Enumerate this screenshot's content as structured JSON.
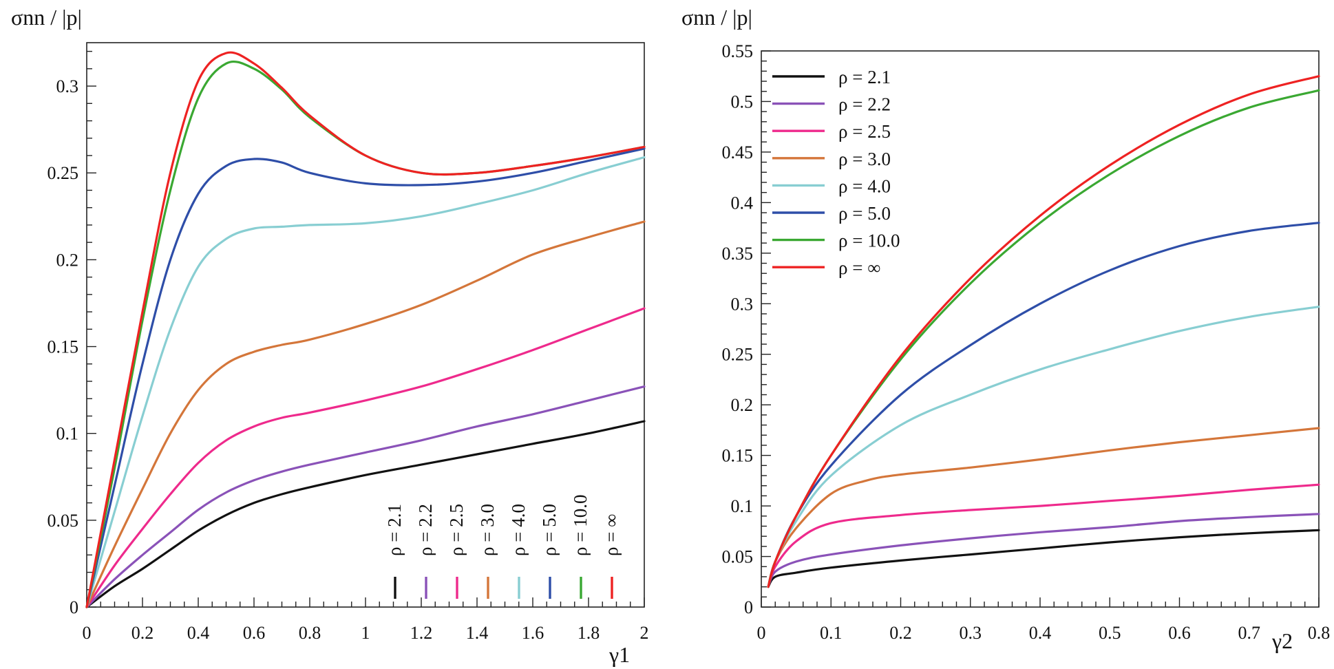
{
  "chart_data": [
    {
      "type": "line",
      "ylabel": "σnn / |p|",
      "xlabel": "γ1",
      "xlim": [
        0,
        2
      ],
      "ylim": [
        0,
        0.325
      ],
      "xticks": [
        "0",
        "0.2",
        "0.4",
        "0.6",
        "0.8",
        "1",
        "1.2",
        "1.4",
        "1.6",
        "1.8",
        "2"
      ],
      "yticks": [
        "0",
        "0.05",
        "0.1",
        "0.15",
        "0.2",
        "0.25",
        "0.3"
      ],
      "legend_placement": "bottom-right, vertical",
      "series": [
        {
          "name": "ρ = 2.1",
          "color": "#111111",
          "x": [
            0,
            0.1,
            0.2,
            0.3,
            0.4,
            0.5,
            0.6,
            0.7,
            0.8,
            1.0,
            1.2,
            1.4,
            1.6,
            1.8,
            2.0
          ],
          "y": [
            0,
            0.012,
            0.022,
            0.033,
            0.044,
            0.053,
            0.06,
            0.065,
            0.069,
            0.076,
            0.082,
            0.088,
            0.094,
            0.1,
            0.107
          ]
        },
        {
          "name": "ρ = 2.2",
          "color": "#8a52b8",
          "x": [
            0,
            0.1,
            0.2,
            0.3,
            0.4,
            0.5,
            0.6,
            0.7,
            0.8,
            1.0,
            1.2,
            1.4,
            1.6,
            1.8,
            2.0
          ],
          "y": [
            0,
            0.016,
            0.03,
            0.043,
            0.056,
            0.066,
            0.073,
            0.078,
            0.082,
            0.089,
            0.096,
            0.104,
            0.111,
            0.119,
            0.127
          ]
        },
        {
          "name": "ρ = 2.5",
          "color": "#ee2a8c",
          "x": [
            0,
            0.1,
            0.2,
            0.3,
            0.4,
            0.5,
            0.6,
            0.7,
            0.8,
            1.0,
            1.2,
            1.4,
            1.6,
            1.8,
            2.0
          ],
          "y": [
            0,
            0.024,
            0.045,
            0.065,
            0.083,
            0.096,
            0.104,
            0.109,
            0.112,
            0.119,
            0.127,
            0.137,
            0.148,
            0.16,
            0.172
          ]
        },
        {
          "name": "ρ = 3.0",
          "color": "#d4763a",
          "x": [
            0,
            0.1,
            0.2,
            0.3,
            0.4,
            0.5,
            0.6,
            0.7,
            0.8,
            1.0,
            1.2,
            1.4,
            1.6,
            1.8,
            2.0
          ],
          "y": [
            0,
            0.035,
            0.068,
            0.1,
            0.125,
            0.14,
            0.147,
            0.151,
            0.154,
            0.163,
            0.174,
            0.188,
            0.203,
            0.213,
            0.222
          ]
        },
        {
          "name": "ρ = 4.0",
          "color": "#88ced2",
          "x": [
            0,
            0.1,
            0.2,
            0.3,
            0.4,
            0.5,
            0.6,
            0.7,
            0.8,
            1.0,
            1.2,
            1.4,
            1.6,
            1.8,
            2.0
          ],
          "y": [
            0,
            0.055,
            0.11,
            0.16,
            0.196,
            0.212,
            0.218,
            0.219,
            0.22,
            0.221,
            0.225,
            0.232,
            0.24,
            0.25,
            0.259
          ]
        },
        {
          "name": "ρ = 5.0",
          "color": "#2e4ea8",
          "x": [
            0,
            0.1,
            0.2,
            0.3,
            0.4,
            0.5,
            0.6,
            0.7,
            0.8,
            1.0,
            1.2,
            1.4,
            1.6,
            1.8,
            2.0
          ],
          "y": [
            0,
            0.07,
            0.14,
            0.2,
            0.238,
            0.254,
            0.258,
            0.256,
            0.25,
            0.244,
            0.243,
            0.245,
            0.25,
            0.257,
            0.264
          ]
        },
        {
          "name": "ρ = 10.0",
          "color": "#3aa832",
          "x": [
            0,
            0.1,
            0.2,
            0.3,
            0.4,
            0.5,
            0.6,
            0.7,
            0.8,
            1.0,
            1.2,
            1.4,
            1.6,
            1.8,
            2.0
          ],
          "y": [
            0,
            0.08,
            0.165,
            0.24,
            0.293,
            0.313,
            0.31,
            0.298,
            0.282,
            0.26,
            0.25,
            0.25,
            0.254,
            0.259,
            0.265
          ]
        },
        {
          "name": "ρ = ∞",
          "color": "#ee2222",
          "x": [
            0,
            0.1,
            0.2,
            0.3,
            0.4,
            0.5,
            0.6,
            0.7,
            0.8,
            1.0,
            1.2,
            1.4,
            1.6,
            1.8,
            2.0
          ],
          "y": [
            0,
            0.085,
            0.17,
            0.25,
            0.303,
            0.319,
            0.313,
            0.299,
            0.283,
            0.26,
            0.25,
            0.25,
            0.254,
            0.259,
            0.265
          ]
        }
      ]
    },
    {
      "type": "line",
      "ylabel": "σnn / |p|",
      "xlabel": "γ2",
      "xlim": [
        0,
        0.8
      ],
      "ylim": [
        0,
        0.55
      ],
      "xticks": [
        "0",
        "0.1",
        "0.2",
        "0.3",
        "0.4",
        "0.5",
        "0.6",
        "0.7",
        "0.8"
      ],
      "yticks": [
        "0",
        "0.05",
        "0.1",
        "0.15",
        "0.2",
        "0.25",
        "0.3",
        "0.35",
        "0.4",
        "0.45",
        "0.5",
        "0.55"
      ],
      "legend_placement": "top-left",
      "series": [
        {
          "name": "ρ = 2.1",
          "color": "#111111",
          "x": [
            0.01,
            0.02,
            0.05,
            0.1,
            0.2,
            0.3,
            0.4,
            0.5,
            0.6,
            0.7,
            0.8
          ],
          "y": [
            0.02,
            0.03,
            0.034,
            0.039,
            0.046,
            0.052,
            0.058,
            0.064,
            0.069,
            0.073,
            0.076
          ]
        },
        {
          "name": "ρ = 2.2",
          "color": "#8a52b8",
          "x": [
            0.01,
            0.02,
            0.05,
            0.1,
            0.2,
            0.3,
            0.4,
            0.5,
            0.6,
            0.7,
            0.8
          ],
          "y": [
            0.02,
            0.035,
            0.045,
            0.052,
            0.061,
            0.068,
            0.074,
            0.079,
            0.085,
            0.089,
            0.092
          ]
        },
        {
          "name": "ρ = 2.5",
          "color": "#ee2a8c",
          "x": [
            0.01,
            0.02,
            0.05,
            0.1,
            0.2,
            0.3,
            0.4,
            0.5,
            0.6,
            0.7,
            0.8
          ],
          "y": [
            0.02,
            0.04,
            0.065,
            0.083,
            0.091,
            0.096,
            0.1,
            0.105,
            0.11,
            0.116,
            0.121
          ]
        },
        {
          "name": "ρ = 3.0",
          "color": "#d4763a",
          "x": [
            0.01,
            0.02,
            0.05,
            0.1,
            0.15,
            0.2,
            0.3,
            0.4,
            0.5,
            0.6,
            0.7,
            0.8
          ],
          "y": [
            0.02,
            0.045,
            0.078,
            0.112,
            0.125,
            0.131,
            0.138,
            0.146,
            0.155,
            0.163,
            0.17,
            0.177
          ]
        },
        {
          "name": "ρ = 4.0",
          "color": "#88ced2",
          "x": [
            0.01,
            0.02,
            0.05,
            0.1,
            0.2,
            0.3,
            0.4,
            0.5,
            0.6,
            0.7,
            0.8
          ],
          "y": [
            0.02,
            0.045,
            0.085,
            0.13,
            0.18,
            0.21,
            0.235,
            0.255,
            0.273,
            0.287,
            0.297
          ]
        },
        {
          "name": "ρ = 5.0",
          "color": "#2e4ea8",
          "x": [
            0.01,
            0.02,
            0.05,
            0.1,
            0.2,
            0.3,
            0.4,
            0.5,
            0.6,
            0.7,
            0.8
          ],
          "y": [
            0.02,
            0.045,
            0.09,
            0.14,
            0.21,
            0.259,
            0.3,
            0.333,
            0.357,
            0.372,
            0.38
          ]
        },
        {
          "name": "ρ = 10.0",
          "color": "#3aa832",
          "x": [
            0.01,
            0.02,
            0.05,
            0.1,
            0.2,
            0.3,
            0.4,
            0.5,
            0.6,
            0.7,
            0.8
          ],
          "y": [
            0.02,
            0.045,
            0.09,
            0.15,
            0.245,
            0.32,
            0.38,
            0.428,
            0.466,
            0.494,
            0.511
          ]
        },
        {
          "name": "ρ = ∞",
          "color": "#ee2222",
          "x": [
            0.01,
            0.02,
            0.05,
            0.1,
            0.2,
            0.3,
            0.4,
            0.5,
            0.6,
            0.7,
            0.8
          ],
          "y": [
            0.02,
            0.045,
            0.09,
            0.15,
            0.248,
            0.325,
            0.387,
            0.437,
            0.477,
            0.507,
            0.525
          ]
        }
      ]
    }
  ]
}
